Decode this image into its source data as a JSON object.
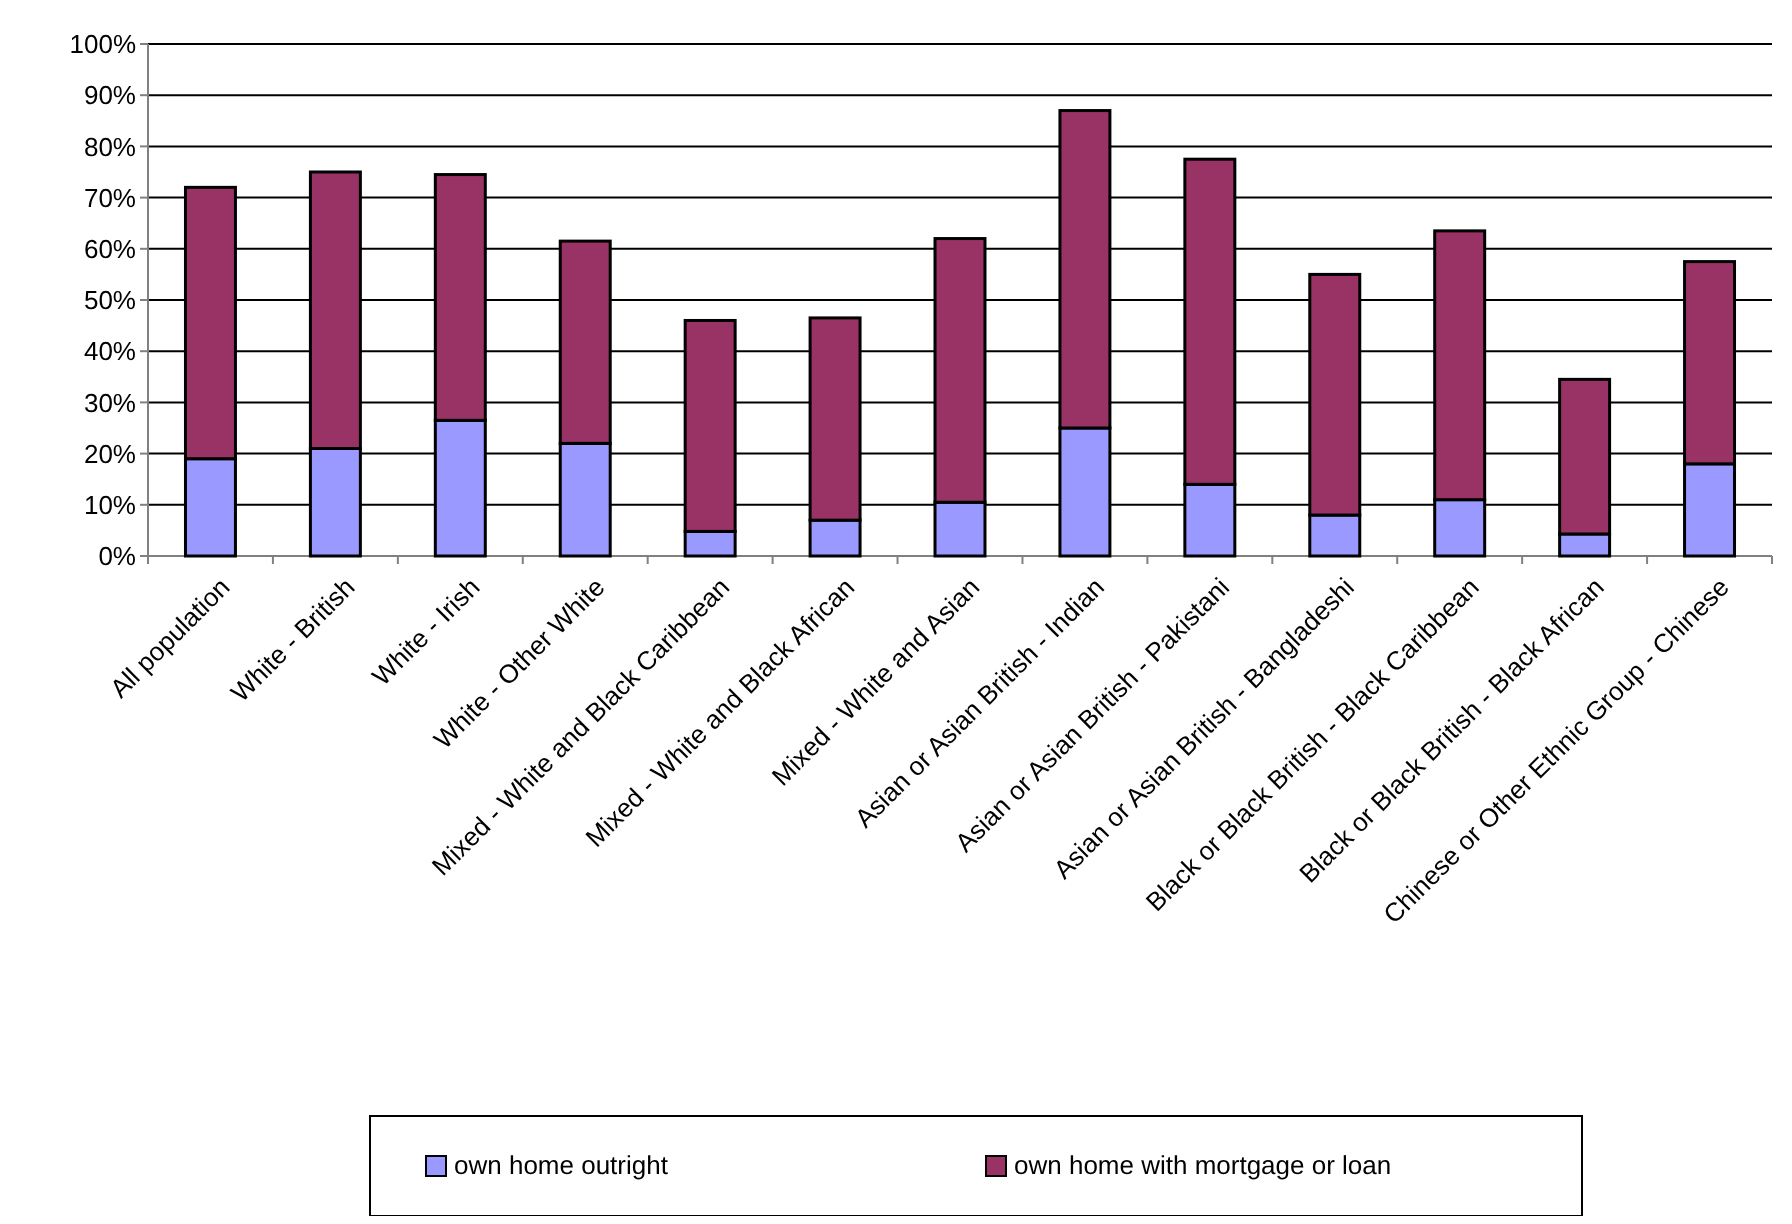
{
  "chart_data": {
    "type": "bar",
    "stacked": true,
    "categories": [
      "All population",
      "White - British",
      "White - Irish",
      "White - Other White",
      "Mixed - White and Black Caribbean",
      "Mixed - White and Black African",
      "Mixed - White and Asian",
      "Asian or Asian British - Indian",
      "Asian or Asian British - Pakistani",
      "Asian or Asian British - Bangladeshi",
      "Black or Black British - Black Caribbean",
      "Black or Black British - Black African",
      "Chinese or Other Ethnic Group - Chinese"
    ],
    "series": [
      {
        "name": "own home outright",
        "color": "#9999ff",
        "values": [
          19,
          21,
          26.5,
          22,
          4.8,
          7,
          10.5,
          25,
          14,
          8,
          11,
          4.3,
          18
        ]
      },
      {
        "name": "own home with mortgage or loan",
        "color": "#993366",
        "values": [
          53,
          54,
          48,
          39.5,
          41.2,
          39.5,
          51.5,
          62,
          63.5,
          47,
          52.5,
          30.2,
          39.5
        ]
      }
    ],
    "ylim": [
      0,
      100
    ],
    "yticks": [
      {
        "value": 0,
        "label": "0%"
      },
      {
        "value": 10,
        "label": "10%"
      },
      {
        "value": 20,
        "label": "20%"
      },
      {
        "value": 30,
        "label": "30%"
      },
      {
        "value": 40,
        "label": "40%"
      },
      {
        "value": 50,
        "label": "50%"
      },
      {
        "value": 60,
        "label": "60%"
      },
      {
        "value": 70,
        "label": "70%"
      },
      {
        "value": 80,
        "label": "80%"
      },
      {
        "value": 90,
        "label": "90%"
      },
      {
        "value": 100,
        "label": "100%"
      }
    ],
    "grid": "y",
    "legend": "bottom"
  }
}
